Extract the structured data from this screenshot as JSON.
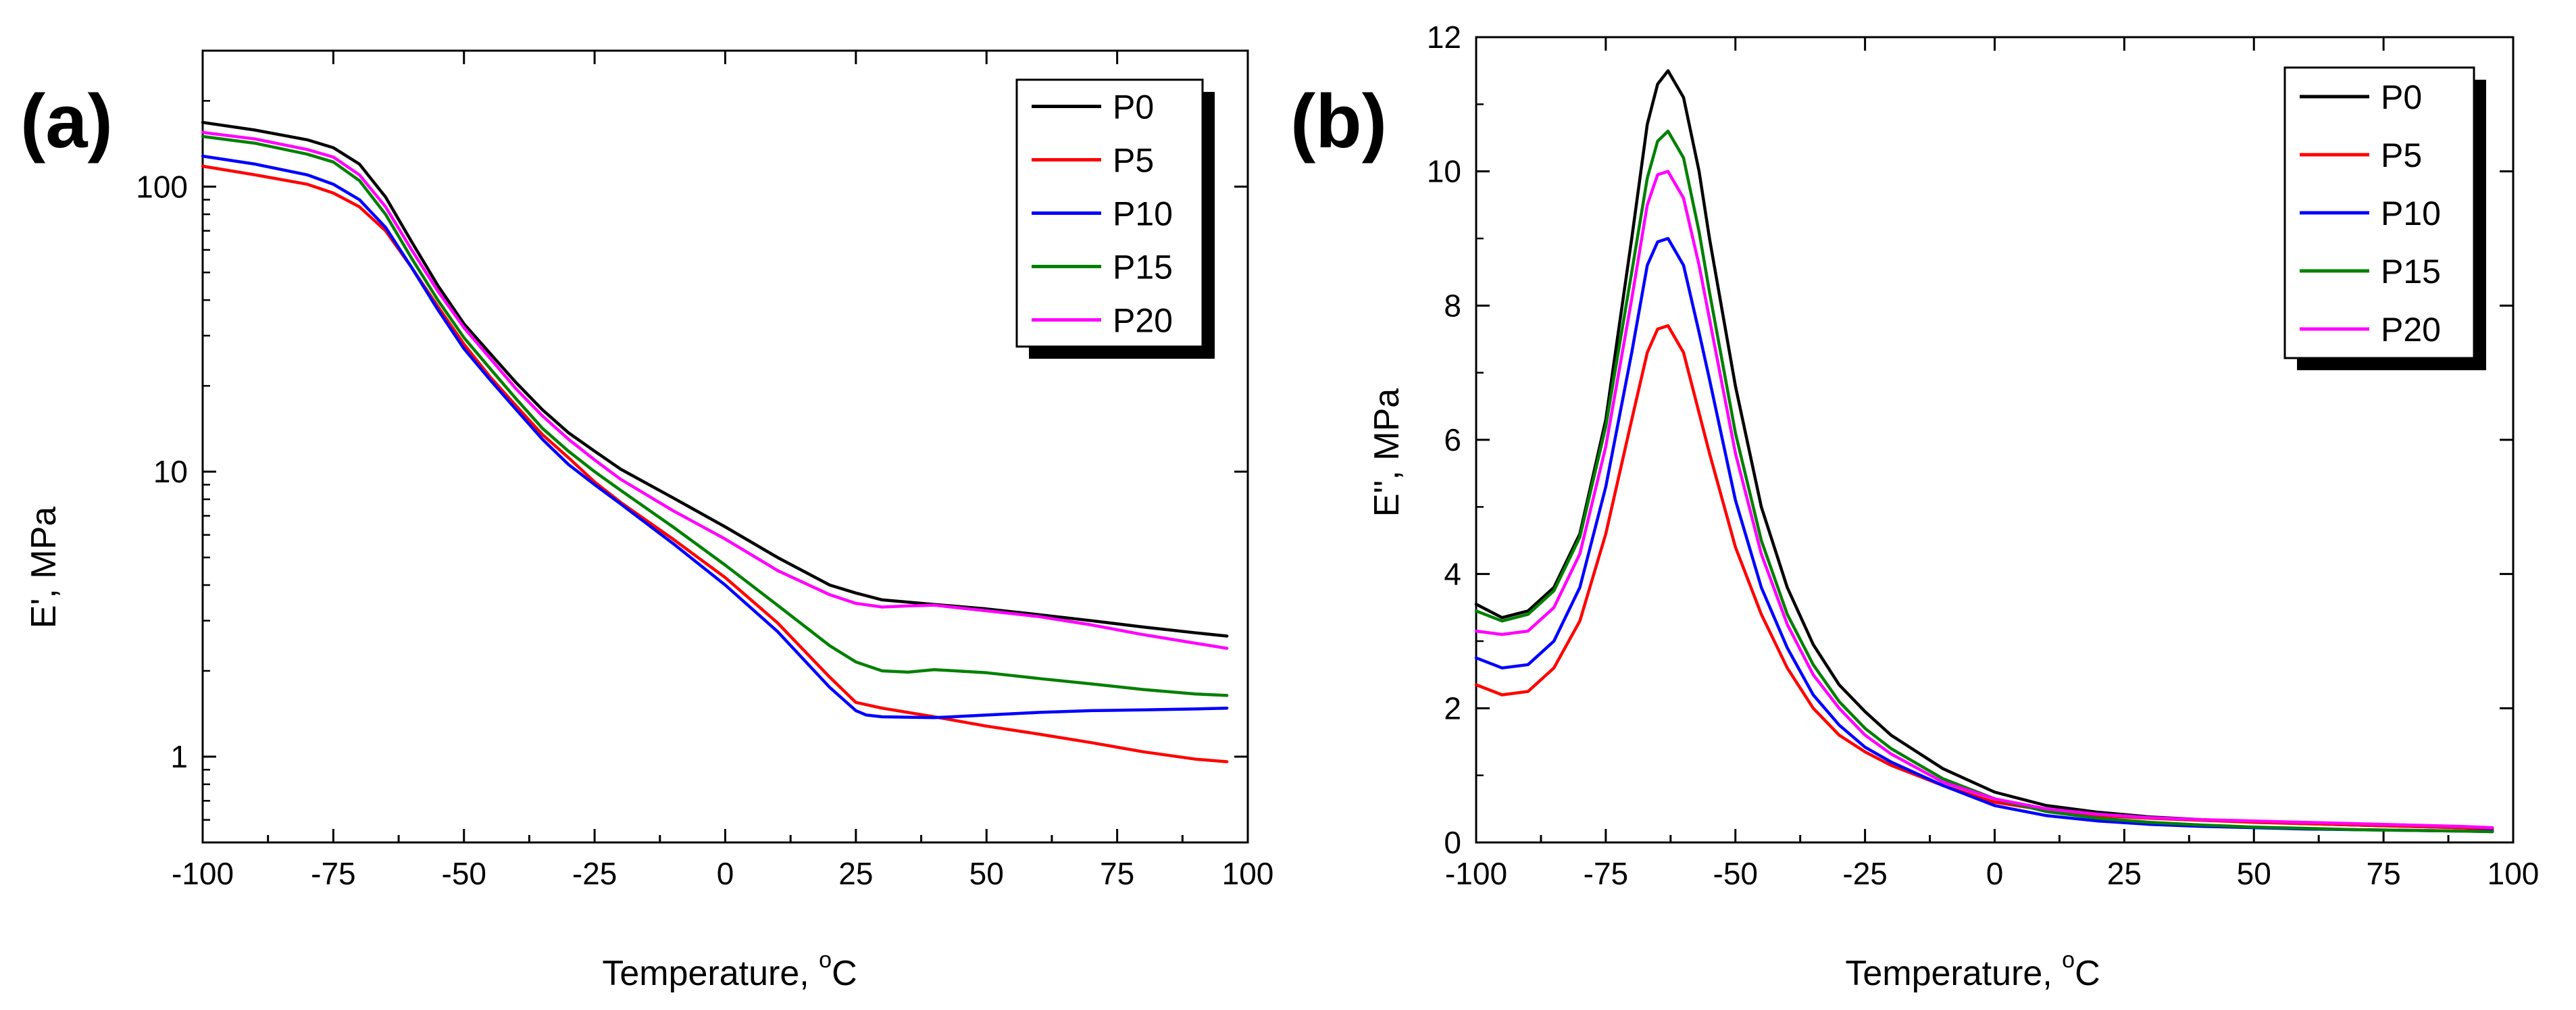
{
  "chart_data": [
    {
      "panel": "(a)",
      "type": "line",
      "xlabel": "Temperature, ",
      "xlabel_sup": "o",
      "xlabel_unit": "C",
      "ylabel": "E', MPa",
      "yscale": "log",
      "xlim": [
        -100,
        100
      ],
      "ylim": [
        0.5,
        300
      ],
      "xticks": [
        -100,
        -75,
        -50,
        -25,
        0,
        25,
        50,
        75,
        100
      ],
      "xtick_labels": [
        "-100",
        "-75",
        "-50",
        "-25",
        "0",
        "25",
        "50",
        "75",
        "100"
      ],
      "yticks": [
        1,
        10,
        100
      ],
      "ytick_labels": [
        "1",
        "10",
        "100"
      ],
      "legend": {
        "position": "top-right",
        "labels": [
          "P0",
          "P5",
          "P10",
          "P15",
          "P20"
        ]
      },
      "series": [
        {
          "name": "P0",
          "color": "#000000",
          "x": [
            -100,
            -90,
            -80,
            -75,
            -70,
            -65,
            -60,
            -55,
            -50,
            -45,
            -40,
            -35,
            -30,
            -25,
            -20,
            -10,
            0,
            10,
            20,
            25,
            30,
            40,
            50,
            60,
            70,
            80,
            90,
            96
          ],
          "y": [
            168,
            158,
            146,
            137,
            120,
            92,
            64,
            45,
            33,
            26,
            20.5,
            16.5,
            13.7,
            11.8,
            10.2,
            8.1,
            6.4,
            5.0,
            4.0,
            3.75,
            3.55,
            3.42,
            3.3,
            3.15,
            3.0,
            2.85,
            2.72,
            2.65
          ]
        },
        {
          "name": "P5",
          "color": "#ff0000",
          "x": [
            -100,
            -90,
            -80,
            -75,
            -70,
            -65,
            -60,
            -55,
            -50,
            -45,
            -40,
            -35,
            -30,
            -25,
            -20,
            -10,
            0,
            10,
            20,
            25,
            30,
            40,
            50,
            60,
            70,
            80,
            90,
            96
          ],
          "y": [
            118,
            110,
            102,
            95,
            85,
            70,
            52,
            38,
            28,
            21.5,
            17,
            13.5,
            11.2,
            9.2,
            7.8,
            5.8,
            4.25,
            2.95,
            1.9,
            1.55,
            1.48,
            1.38,
            1.28,
            1.2,
            1.12,
            1.04,
            0.98,
            0.96
          ]
        },
        {
          "name": "P10",
          "color": "#0000ff",
          "x": [
            -100,
            -90,
            -80,
            -75,
            -70,
            -65,
            -60,
            -55,
            -50,
            -45,
            -40,
            -35,
            -30,
            -25,
            -20,
            -10,
            0,
            10,
            20,
            25,
            27,
            30,
            40,
            50,
            60,
            70,
            80,
            90,
            96
          ],
          "y": [
            128,
            120,
            110,
            102,
            90,
            72,
            52,
            37,
            27,
            21,
            16.5,
            13,
            10.6,
            9.0,
            7.7,
            5.6,
            4.0,
            2.75,
            1.75,
            1.45,
            1.4,
            1.38,
            1.37,
            1.4,
            1.43,
            1.45,
            1.46,
            1.47,
            1.48
          ]
        },
        {
          "name": "P15",
          "color": "#008000",
          "x": [
            -100,
            -90,
            -80,
            -75,
            -70,
            -65,
            -60,
            -55,
            -50,
            -45,
            -40,
            -35,
            -30,
            -25,
            -20,
            -10,
            0,
            10,
            20,
            25,
            30,
            35,
            40,
            50,
            60,
            70,
            80,
            90,
            96
          ],
          "y": [
            150,
            142,
            130,
            122,
            105,
            80,
            56,
            40,
            29.5,
            23,
            18,
            14.2,
            11.8,
            10.0,
            8.6,
            6.4,
            4.7,
            3.4,
            2.45,
            2.15,
            2.0,
            1.98,
            2.02,
            1.97,
            1.88,
            1.8,
            1.72,
            1.66,
            1.64
          ]
        },
        {
          "name": "P20",
          "color": "#ff00ff",
          "x": [
            -100,
            -90,
            -80,
            -75,
            -70,
            -65,
            -60,
            -55,
            -50,
            -45,
            -40,
            -35,
            -30,
            -25,
            -20,
            -10,
            0,
            10,
            20,
            25,
            30,
            35,
            40,
            50,
            60,
            70,
            80,
            90,
            96
          ],
          "y": [
            155,
            147,
            135,
            127,
            110,
            85,
            60,
            43,
            32,
            25,
            19.5,
            15.7,
            13.0,
            11.0,
            9.4,
            7.3,
            5.8,
            4.5,
            3.7,
            3.45,
            3.35,
            3.38,
            3.4,
            3.25,
            3.1,
            2.9,
            2.68,
            2.5,
            2.4
          ]
        }
      ]
    },
    {
      "panel": "(b)",
      "type": "line",
      "xlabel": "Temperature, ",
      "xlabel_sup": "o",
      "xlabel_unit": "C",
      "ylabel": "E'', MPa",
      "yscale": "linear",
      "xlim": [
        -100,
        100
      ],
      "ylim": [
        0,
        12
      ],
      "xticks": [
        -100,
        -75,
        -50,
        -25,
        0,
        25,
        50,
        75,
        100
      ],
      "xtick_labels": [
        "-100",
        "-75",
        "-50",
        "-25",
        "0",
        "25",
        "50",
        "75",
        "100"
      ],
      "yticks": [
        0,
        2,
        4,
        6,
        8,
        10,
        12
      ],
      "ytick_labels": [
        "0",
        "2",
        "4",
        "6",
        "8",
        "10",
        "12"
      ],
      "legend": {
        "position": "top-right",
        "labels": [
          "P0",
          "P5",
          "P10",
          "P15",
          "P20"
        ]
      },
      "series": [
        {
          "name": "P0",
          "color": "#000000",
          "x": [
            -100,
            -95,
            -90,
            -85,
            -80,
            -75,
            -70,
            -67,
            -65,
            -63,
            -60,
            -57,
            -55,
            -50,
            -45,
            -40,
            -35,
            -30,
            -25,
            -20,
            -10,
            0,
            10,
            20,
            30,
            40,
            50,
            60,
            70,
            80,
            90,
            96
          ],
          "y": [
            3.55,
            3.35,
            3.45,
            3.8,
            4.6,
            6.3,
            9.0,
            10.7,
            11.3,
            11.5,
            11.1,
            10.0,
            9.0,
            6.8,
            5.0,
            3.8,
            2.95,
            2.35,
            1.95,
            1.6,
            1.1,
            0.75,
            0.55,
            0.45,
            0.38,
            0.34,
            0.31,
            0.28,
            0.26,
            0.24,
            0.22,
            0.2
          ]
        },
        {
          "name": "P5",
          "color": "#ff0000",
          "x": [
            -100,
            -95,
            -90,
            -85,
            -80,
            -75,
            -70,
            -67,
            -65,
            -63,
            -60,
            -57,
            -55,
            -50,
            -45,
            -40,
            -35,
            -30,
            -25,
            -20,
            -10,
            0,
            10,
            20,
            30,
            40,
            50,
            60,
            70,
            80,
            90,
            96
          ],
          "y": [
            2.35,
            2.2,
            2.25,
            2.6,
            3.3,
            4.6,
            6.3,
            7.3,
            7.65,
            7.7,
            7.3,
            6.4,
            5.8,
            4.4,
            3.4,
            2.6,
            2.0,
            1.6,
            1.35,
            1.15,
            0.85,
            0.6,
            0.48,
            0.4,
            0.36,
            0.33,
            0.3,
            0.28,
            0.26,
            0.24,
            0.22,
            0.2
          ]
        },
        {
          "name": "P10",
          "color": "#0000ff",
          "x": [
            -100,
            -95,
            -90,
            -85,
            -80,
            -75,
            -70,
            -67,
            -65,
            -63,
            -60,
            -57,
            -55,
            -50,
            -45,
            -40,
            -35,
            -30,
            -25,
            -20,
            -10,
            0,
            10,
            20,
            30,
            40,
            50,
            60,
            70,
            80,
            90,
            96
          ],
          "y": [
            2.75,
            2.6,
            2.65,
            3.0,
            3.8,
            5.3,
            7.3,
            8.6,
            8.95,
            9.0,
            8.6,
            7.6,
            6.9,
            5.1,
            3.8,
            2.9,
            2.2,
            1.75,
            1.42,
            1.2,
            0.85,
            0.55,
            0.4,
            0.32,
            0.27,
            0.24,
            0.22,
            0.2,
            0.19,
            0.18,
            0.17,
            0.17
          ]
        },
        {
          "name": "P15",
          "color": "#008000",
          "x": [
            -100,
            -95,
            -90,
            -85,
            -80,
            -75,
            -70,
            -67,
            -65,
            -63,
            -60,
            -57,
            -55,
            -50,
            -45,
            -40,
            -35,
            -30,
            -25,
            -20,
            -10,
            0,
            10,
            20,
            30,
            40,
            50,
            60,
            70,
            80,
            90,
            96
          ],
          "y": [
            3.45,
            3.3,
            3.4,
            3.75,
            4.55,
            6.2,
            8.5,
            9.9,
            10.45,
            10.6,
            10.2,
            9.1,
            8.2,
            6.1,
            4.5,
            3.4,
            2.65,
            2.1,
            1.7,
            1.4,
            0.95,
            0.65,
            0.46,
            0.36,
            0.3,
            0.26,
            0.23,
            0.21,
            0.19,
            0.18,
            0.17,
            0.16
          ]
        },
        {
          "name": "P20",
          "color": "#ff00ff",
          "x": [
            -100,
            -95,
            -90,
            -85,
            -80,
            -75,
            -70,
            -67,
            -65,
            -63,
            -60,
            -57,
            -55,
            -50,
            -45,
            -40,
            -35,
            -30,
            -25,
            -20,
            -10,
            0,
            10,
            20,
            30,
            40,
            50,
            60,
            70,
            80,
            90,
            96
          ],
          "y": [
            3.15,
            3.1,
            3.15,
            3.5,
            4.3,
            5.9,
            8.1,
            9.5,
            9.95,
            10.0,
            9.6,
            8.6,
            7.8,
            5.8,
            4.3,
            3.25,
            2.5,
            2.0,
            1.6,
            1.32,
            0.9,
            0.65,
            0.5,
            0.42,
            0.37,
            0.34,
            0.32,
            0.3,
            0.28,
            0.26,
            0.24,
            0.22
          ]
        }
      ]
    }
  ]
}
